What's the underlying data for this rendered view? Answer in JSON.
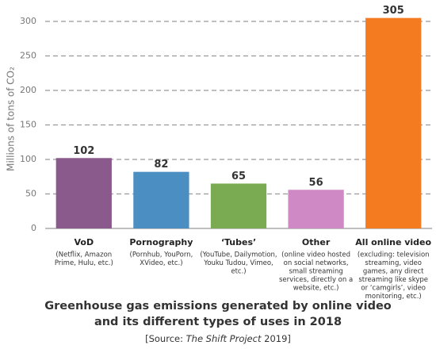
{
  "chart_data": {
    "type": "bar",
    "title_lines": [
      "Greenhouse gas emissions generated by online video",
      "and its different types of uses in 2018"
    ],
    "source_parts": [
      "[Source: ",
      "The Shift Project",
      " 2019]"
    ],
    "y_label": "Millions of tons of CO₂",
    "categories": [
      "VoD",
      "Pornography",
      "‘Tubes’",
      "Other",
      "All online video"
    ],
    "notes": [
      [
        "(Netflix, Amazon",
        "Prime, Hulu, etc.)"
      ],
      [
        "(Pornhub, YouPorn,",
        "XVideo, etc.)"
      ],
      [
        "(YouTube, Dailymotion,",
        "Youku Tudou, Vimeo,",
        "etc.)"
      ],
      [
        "(online video hosted",
        "on social networks,",
        "small streaming",
        "services, directly on a",
        "website, etc.)"
      ],
      [
        "(excluding: television",
        "streaming, video",
        "games, any direct",
        "streaming like skype",
        "or ‘camgirls’, video",
        "monitoring, etc.)"
      ]
    ],
    "values": [
      102,
      82,
      65,
      56,
      305
    ],
    "colors": [
      "#8a5a8c",
      "#4b8ec2",
      "#7aab52",
      "#cf8ac6",
      "#f57b20"
    ],
    "ylim": [
      0,
      320
    ],
    "yticks": [
      0,
      50,
      100,
      150,
      200,
      250,
      300
    ],
    "grid": true
  }
}
